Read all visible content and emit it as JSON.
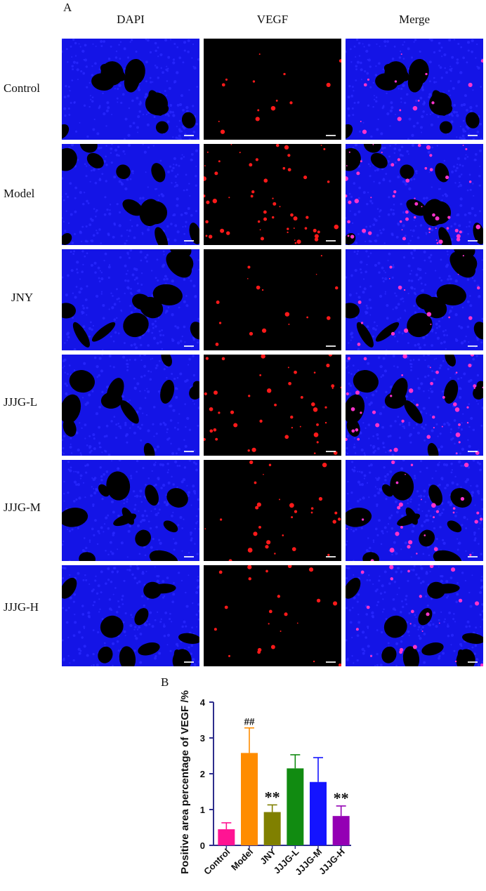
{
  "panel_a_label": "A",
  "panel_b_label": "B",
  "columns": [
    "DAPI",
    "VEGF",
    "Merge"
  ],
  "rows": [
    "Control",
    "Model",
    "JNY",
    "JJJG-L",
    "JJJG-M",
    "JJJG-H"
  ],
  "colors": {
    "dapi": "#1414e6",
    "vegf": "#ff1a1a",
    "merge_signal": "#ff33cc"
  },
  "chart_data": {
    "type": "bar",
    "categories": [
      "Control",
      "Model",
      "JNY",
      "JJJG-L",
      "JJJG-M",
      "JJJG-H"
    ],
    "values": [
      0.45,
      2.58,
      0.93,
      2.15,
      1.77,
      0.82
    ],
    "errors": [
      0.18,
      0.7,
      0.2,
      0.38,
      0.68,
      0.28
    ],
    "colors": [
      "#ff1493",
      "#ff8c00",
      "#808000",
      "#118b11",
      "#1414ff",
      "#9400b4"
    ],
    "annotations": [
      "",
      "##",
      "**",
      "",
      "",
      "**"
    ],
    "ylabel": "Positive area percentage of VEGF /%",
    "ylim": [
      0,
      4
    ],
    "yticks": [
      0,
      1,
      2,
      3,
      4
    ],
    "axis_color": "#2e2e8c"
  }
}
